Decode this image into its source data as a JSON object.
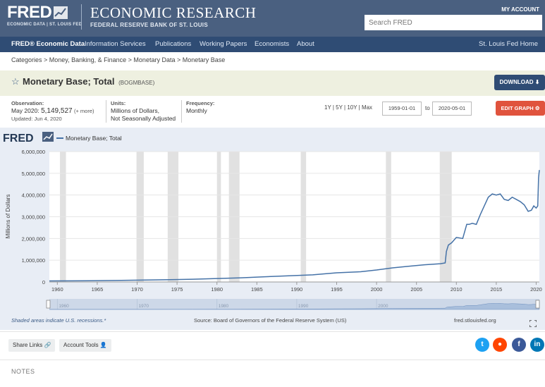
{
  "header": {
    "logo_text": "FRED",
    "logo_sub": "ECONOMIC DATA | ST. LOUIS FED",
    "title": "ECONOMIC RESEARCH",
    "subtitle": "FEDERAL RESERVE BANK OF ST. LOUIS",
    "my_account": "MY ACCOUNT",
    "search_placeholder": "Search FRED"
  },
  "nav": {
    "items": [
      "FRED® Economic Data",
      "Information Services",
      "Publications",
      "Working Papers",
      "Economists",
      "About"
    ],
    "right": "St. Louis Fed Home"
  },
  "breadcrumb": "Categories > Money, Banking, & Finance > Monetary Data > Monetary Base",
  "series": {
    "title": "Monetary Base; Total",
    "id": "(BOGMBASE)",
    "download_label": "DOWNLOAD"
  },
  "meta": {
    "observation_label": "Observation:",
    "observation_period": "May 2020:",
    "observation_value": "5,149,527",
    "observation_more": "(+ more)",
    "updated": "Updated: Jun 4, 2020",
    "units_label": "Units:",
    "units_line1": "Millions of Dollars,",
    "units_line2": "Not Seasonally Adjusted",
    "frequency_label": "Frequency:",
    "frequency": "Monthly"
  },
  "range": {
    "shortcuts": "1Y | 5Y | 10Y | Max",
    "start": "1959-01-01",
    "to": "to",
    "end": "2020-05-01",
    "edit_label": "EDIT GRAPH"
  },
  "footer": {
    "recessions_note": "Shaded areas indicate U.S. recessions.*",
    "source": "Source: Board of Governors of the Federal Reserve System (US)",
    "site": "fred.stlouisfed.org"
  },
  "toolbar": {
    "share_links": "Share Links",
    "account_tools": "Account Tools"
  },
  "notes_label": "NOTES",
  "chart_data": {
    "type": "line",
    "logo": "FRED",
    "series": [
      {
        "name": "Monetary Base; Total",
        "color": "#4572a7"
      }
    ],
    "ylabel": "Millions of Dollars",
    "yticks": [
      "6,000,000",
      "5,000,000",
      "4,000,000",
      "3,000,000",
      "2,000,000",
      "1,000,000",
      "0"
    ],
    "ylim": [
      0,
      6000000
    ],
    "xlim": [
      1959,
      2020.4
    ],
    "xticks": [
      "1960",
      "1965",
      "1970",
      "1975",
      "1980",
      "1985",
      "1990",
      "1995",
      "2000",
      "2005",
      "2010",
      "2015",
      "2020"
    ],
    "navigator_ticks": [
      "1960",
      "1970",
      "1980",
      "1990",
      "2000"
    ],
    "recessions": [
      [
        1960.33,
        1961.08
      ],
      [
        1969.92,
        1970.83
      ],
      [
        1973.83,
        1975.17
      ],
      [
        1980.0,
        1980.5
      ],
      [
        1981.5,
        1982.83
      ],
      [
        1990.5,
        1991.17
      ],
      [
        2001.17,
        2001.83
      ],
      [
        2007.92,
        2009.42
      ]
    ],
    "x": [
      1959,
      1962,
      1965,
      1968,
      1971,
      1974,
      1977,
      1980,
      1983,
      1986,
      1989,
      1992,
      1995,
      1998,
      2000,
      2001,
      2002,
      2004,
      2006,
      2008,
      2008.6,
      2008.75,
      2009.0,
      2009.4,
      2010.0,
      2010.8,
      2011.3,
      2011.6,
      2012.0,
      2012.5,
      2013.0,
      2013.5,
      2014.0,
      2014.5,
      2015.0,
      2015.5,
      2016.0,
      2016.5,
      2017.0,
      2017.5,
      2018.0,
      2018.5,
      2019.0,
      2019.4,
      2019.7,
      2020.0,
      2020.2,
      2020.3,
      2020.4
    ],
    "values": [
      50000,
      53000,
      60000,
      72000,
      88000,
      105000,
      125000,
      160000,
      190000,
      240000,
      285000,
      330000,
      420000,
      470000,
      550000,
      600000,
      650000,
      720000,
      790000,
      840000,
      875000,
      1400000,
      1700000,
      1800000,
      2050000,
      2000000,
      2650000,
      2650000,
      2700000,
      2650000,
      3100000,
      3500000,
      3900000,
      4050000,
      4000000,
      4050000,
      3800000,
      3750000,
      3900000,
      3800000,
      3700000,
      3550000,
      3250000,
      3300000,
      3500000,
      3400000,
      3500000,
      4800000,
      5149527
    ]
  }
}
